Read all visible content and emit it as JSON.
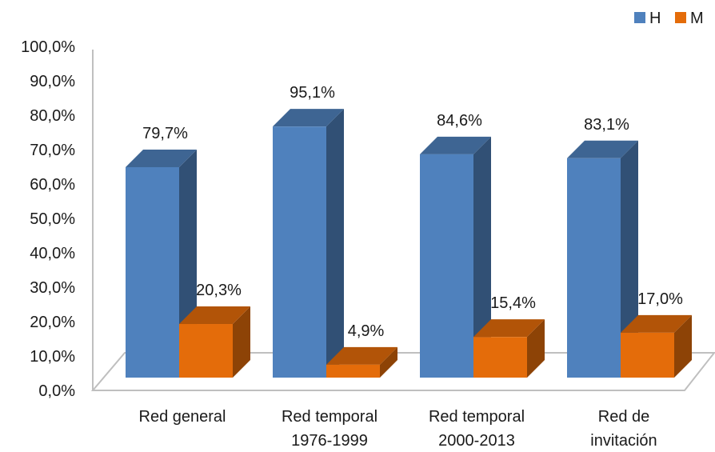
{
  "chart_data": {
    "type": "bar",
    "categories": [
      [
        "Red general"
      ],
      [
        "Red temporal",
        "1976-1999"
      ],
      [
        "Red temporal",
        "2000-2013"
      ],
      [
        "Red de",
        "invitación"
      ]
    ],
    "series": [
      {
        "name": "H",
        "color": "#4f81bd",
        "values": [
          79.7,
          95.1,
          84.6,
          83.1
        ],
        "labels": [
          "79,7%",
          "95,1%",
          "84,6%",
          "83,1%"
        ]
      },
      {
        "name": "M",
        "color": "#e46c0a",
        "values": [
          20.3,
          4.9,
          15.4,
          17.0
        ],
        "labels": [
          "20,3%",
          "4,9%",
          "15,4%",
          "17,0%"
        ]
      }
    ],
    "yticks": [
      "0,0%",
      "10,0%",
      "20,0%",
      "30,0%",
      "40,0%",
      "50,0%",
      "60,0%",
      "70,0%",
      "80,0%",
      "90,0%",
      "100,0%"
    ],
    "ylim": [
      0,
      100
    ],
    "legend_position": "top-right",
    "style": "3d-column"
  }
}
